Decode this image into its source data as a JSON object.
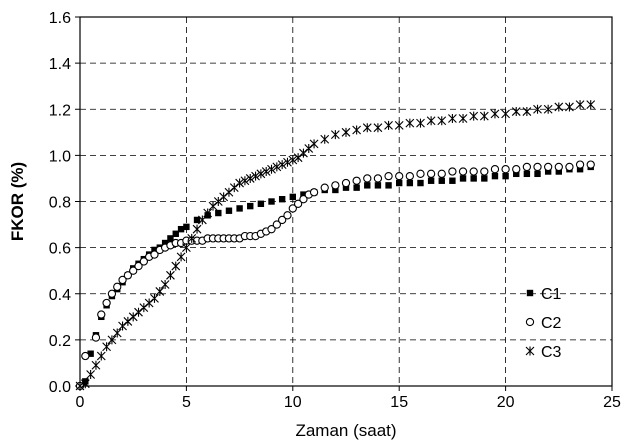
{
  "chart_data": {
    "type": "scatter",
    "title": "",
    "xlabel": "Zaman (saat)",
    "ylabel": "FKOR (%)",
    "xlim": [
      0,
      25
    ],
    "ylim": [
      0,
      1.6
    ],
    "xticks": [
      "0",
      "5",
      "10",
      "15",
      "20",
      "25"
    ],
    "yticks": [
      "0.0",
      "0.2",
      "0.4",
      "0.6",
      "0.8",
      "1.0",
      "1.2",
      "1.4",
      "1.6"
    ],
    "grid": true,
    "legend_position": "lower-right",
    "series": [
      {
        "name": "C1",
        "marker": "filled-square",
        "color": "#000000",
        "points": [
          [
            0,
            0
          ],
          [
            0.25,
            0.02
          ],
          [
            0.5,
            0.14
          ],
          [
            0.75,
            0.22
          ],
          [
            1,
            0.3
          ],
          [
            1.25,
            0.35
          ],
          [
            1.5,
            0.39
          ],
          [
            1.75,
            0.42
          ],
          [
            2,
            0.45
          ],
          [
            2.25,
            0.48
          ],
          [
            2.5,
            0.51
          ],
          [
            2.75,
            0.53
          ],
          [
            3,
            0.55
          ],
          [
            3.25,
            0.57
          ],
          [
            3.5,
            0.59
          ],
          [
            3.75,
            0.6
          ],
          [
            4,
            0.62
          ],
          [
            4.25,
            0.64
          ],
          [
            4.5,
            0.66
          ],
          [
            4.75,
            0.68
          ],
          [
            5,
            0.69
          ],
          [
            5.5,
            0.72
          ],
          [
            6,
            0.74
          ],
          [
            6.5,
            0.75
          ],
          [
            7,
            0.76
          ],
          [
            7.5,
            0.77
          ],
          [
            8,
            0.78
          ],
          [
            8.5,
            0.79
          ],
          [
            9,
            0.8
          ],
          [
            9.5,
            0.81
          ],
          [
            10,
            0.82
          ],
          [
            10.5,
            0.83
          ],
          [
            11,
            0.84
          ],
          [
            11.5,
            0.85
          ],
          [
            12,
            0.85
          ],
          [
            12.5,
            0.86
          ],
          [
            13,
            0.86
          ],
          [
            13.5,
            0.87
          ],
          [
            14,
            0.87
          ],
          [
            14.5,
            0.87
          ],
          [
            15,
            0.88
          ],
          [
            15.5,
            0.88
          ],
          [
            16,
            0.88
          ],
          [
            16.5,
            0.89
          ],
          [
            17,
            0.89
          ],
          [
            17.5,
            0.89
          ],
          [
            18,
            0.9
          ],
          [
            18.5,
            0.9
          ],
          [
            19,
            0.9
          ],
          [
            19.5,
            0.91
          ],
          [
            20,
            0.91
          ],
          [
            20.5,
            0.92
          ],
          [
            21,
            0.92
          ],
          [
            21.5,
            0.92
          ],
          [
            22,
            0.93
          ],
          [
            22.5,
            0.93
          ],
          [
            23,
            0.94
          ],
          [
            23.5,
            0.94
          ],
          [
            24,
            0.95
          ]
        ]
      },
      {
        "name": "C2",
        "marker": "open-circle",
        "color": "#000000",
        "points": [
          [
            0,
            0
          ],
          [
            0.25,
            0.13
          ],
          [
            0.75,
            0.21
          ],
          [
            1,
            0.31
          ],
          [
            1.25,
            0.36
          ],
          [
            1.5,
            0.4
          ],
          [
            1.75,
            0.43
          ],
          [
            2,
            0.46
          ],
          [
            2.25,
            0.48
          ],
          [
            2.5,
            0.5
          ],
          [
            2.75,
            0.52
          ],
          [
            3,
            0.54
          ],
          [
            3.25,
            0.56
          ],
          [
            3.5,
            0.57
          ],
          [
            3.75,
            0.59
          ],
          [
            4,
            0.6
          ],
          [
            4.25,
            0.61
          ],
          [
            4.5,
            0.62
          ],
          [
            4.75,
            0.62
          ],
          [
            5,
            0.63
          ],
          [
            5.25,
            0.63
          ],
          [
            5.5,
            0.63
          ],
          [
            5.75,
            0.63
          ],
          [
            6,
            0.64
          ],
          [
            6.25,
            0.64
          ],
          [
            6.5,
            0.64
          ],
          [
            6.75,
            0.64
          ],
          [
            7,
            0.64
          ],
          [
            7.25,
            0.64
          ],
          [
            7.5,
            0.64
          ],
          [
            7.75,
            0.65
          ],
          [
            8,
            0.65
          ],
          [
            8.25,
            0.65
          ],
          [
            8.5,
            0.66
          ],
          [
            8.75,
            0.67
          ],
          [
            9,
            0.68
          ],
          [
            9.25,
            0.7
          ],
          [
            9.5,
            0.72
          ],
          [
            9.75,
            0.74
          ],
          [
            10,
            0.77
          ],
          [
            10.25,
            0.79
          ],
          [
            10.5,
            0.81
          ],
          [
            10.75,
            0.83
          ],
          [
            11,
            0.84
          ],
          [
            11.5,
            0.86
          ],
          [
            12,
            0.87
          ],
          [
            12.5,
            0.88
          ],
          [
            13,
            0.89
          ],
          [
            13.5,
            0.9
          ],
          [
            14,
            0.9
          ],
          [
            14.5,
            0.91
          ],
          [
            15,
            0.91
          ],
          [
            15.5,
            0.91
          ],
          [
            16,
            0.92
          ],
          [
            16.5,
            0.92
          ],
          [
            17,
            0.92
          ],
          [
            17.5,
            0.93
          ],
          [
            18,
            0.93
          ],
          [
            18.5,
            0.93
          ],
          [
            19,
            0.93
          ],
          [
            19.5,
            0.94
          ],
          [
            20,
            0.94
          ],
          [
            20.5,
            0.94
          ],
          [
            21,
            0.95
          ],
          [
            21.5,
            0.95
          ],
          [
            22,
            0.95
          ],
          [
            22.5,
            0.95
          ],
          [
            23,
            0.95
          ],
          [
            23.5,
            0.96
          ],
          [
            24,
            0.96
          ]
        ]
      },
      {
        "name": "C3",
        "marker": "star",
        "color": "#000000",
        "points": [
          [
            0,
            0
          ],
          [
            0.25,
            0.01
          ],
          [
            0.5,
            0.05
          ],
          [
            0.75,
            0.09
          ],
          [
            1,
            0.13
          ],
          [
            1.25,
            0.17
          ],
          [
            1.5,
            0.2
          ],
          [
            1.75,
            0.23
          ],
          [
            2,
            0.26
          ],
          [
            2.25,
            0.28
          ],
          [
            2.5,
            0.3
          ],
          [
            2.75,
            0.32
          ],
          [
            3,
            0.34
          ],
          [
            3.25,
            0.36
          ],
          [
            3.5,
            0.38
          ],
          [
            3.75,
            0.41
          ],
          [
            4,
            0.44
          ],
          [
            4.25,
            0.48
          ],
          [
            4.5,
            0.52
          ],
          [
            4.75,
            0.56
          ],
          [
            5,
            0.6
          ],
          [
            5.25,
            0.64
          ],
          [
            5.5,
            0.68
          ],
          [
            5.75,
            0.72
          ],
          [
            6,
            0.75
          ],
          [
            6.25,
            0.78
          ],
          [
            6.5,
            0.8
          ],
          [
            6.75,
            0.82
          ],
          [
            7,
            0.84
          ],
          [
            7.25,
            0.86
          ],
          [
            7.5,
            0.88
          ],
          [
            7.75,
            0.89
          ],
          [
            8,
            0.9
          ],
          [
            8.25,
            0.91
          ],
          [
            8.5,
            0.92
          ],
          [
            8.75,
            0.93
          ],
          [
            9,
            0.94
          ],
          [
            9.25,
            0.95
          ],
          [
            9.5,
            0.96
          ],
          [
            9.75,
            0.97
          ],
          [
            10,
            0.98
          ],
          [
            10.25,
            0.99
          ],
          [
            10.5,
            1.01
          ],
          [
            10.75,
            1.03
          ],
          [
            11,
            1.05
          ],
          [
            11.5,
            1.07
          ],
          [
            12,
            1.09
          ],
          [
            12.5,
            1.1
          ],
          [
            13,
            1.11
          ],
          [
            13.5,
            1.12
          ],
          [
            14,
            1.12
          ],
          [
            14.5,
            1.13
          ],
          [
            15,
            1.13
          ],
          [
            15.5,
            1.14
          ],
          [
            16,
            1.14
          ],
          [
            16.5,
            1.15
          ],
          [
            17,
            1.15
          ],
          [
            17.5,
            1.16
          ],
          [
            18,
            1.16
          ],
          [
            18.5,
            1.17
          ],
          [
            19,
            1.17
          ],
          [
            19.5,
            1.18
          ],
          [
            20,
            1.18
          ],
          [
            20.5,
            1.19
          ],
          [
            21,
            1.19
          ],
          [
            21.5,
            1.2
          ],
          [
            22,
            1.2
          ],
          [
            22.5,
            1.21
          ],
          [
            23,
            1.21
          ],
          [
            23.5,
            1.22
          ],
          [
            24,
            1.22
          ]
        ]
      }
    ]
  }
}
